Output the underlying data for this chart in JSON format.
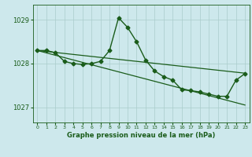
{
  "title": "Graphe pression niveau de la mer (hPa)",
  "background_color": "#cde8ec",
  "grid_color": "#aacccc",
  "line_color": "#1a5c1a",
  "ylim": [
    1026.65,
    1029.35
  ],
  "xlim": [
    -0.5,
    23.5
  ],
  "yticks": [
    1027,
    1028,
    1029
  ],
  "xticks": [
    0,
    1,
    2,
    3,
    4,
    5,
    6,
    7,
    8,
    9,
    10,
    11,
    12,
    13,
    14,
    15,
    16,
    17,
    18,
    19,
    20,
    21,
    22,
    23
  ],
  "series": [
    {
      "x": [
        0,
        23
      ],
      "y": [
        1028.3,
        1027.78
      ],
      "marker": null,
      "linewidth": 0.9
    },
    {
      "x": [
        0,
        23
      ],
      "y": [
        1028.3,
        1027.05
      ],
      "marker": null,
      "linewidth": 0.9
    },
    {
      "x": [
        0,
        1,
        2,
        3,
        4,
        5,
        6,
        7,
        8,
        9,
        10,
        11,
        12,
        13,
        14,
        15,
        16,
        17,
        18,
        19,
        20,
        21,
        22,
        23
      ],
      "y": [
        1028.3,
        1028.3,
        1028.25,
        1028.05,
        1028.0,
        1027.98,
        1028.0,
        1028.05,
        1028.3,
        1029.05,
        1028.83,
        1028.5,
        1028.08,
        1027.83,
        1027.7,
        1027.62,
        1027.4,
        1027.38,
        1027.35,
        1027.3,
        1027.25,
        1027.25,
        1027.62,
        1027.77
      ],
      "marker": "D",
      "markersize": 2.5,
      "linewidth": 1.0
    }
  ]
}
